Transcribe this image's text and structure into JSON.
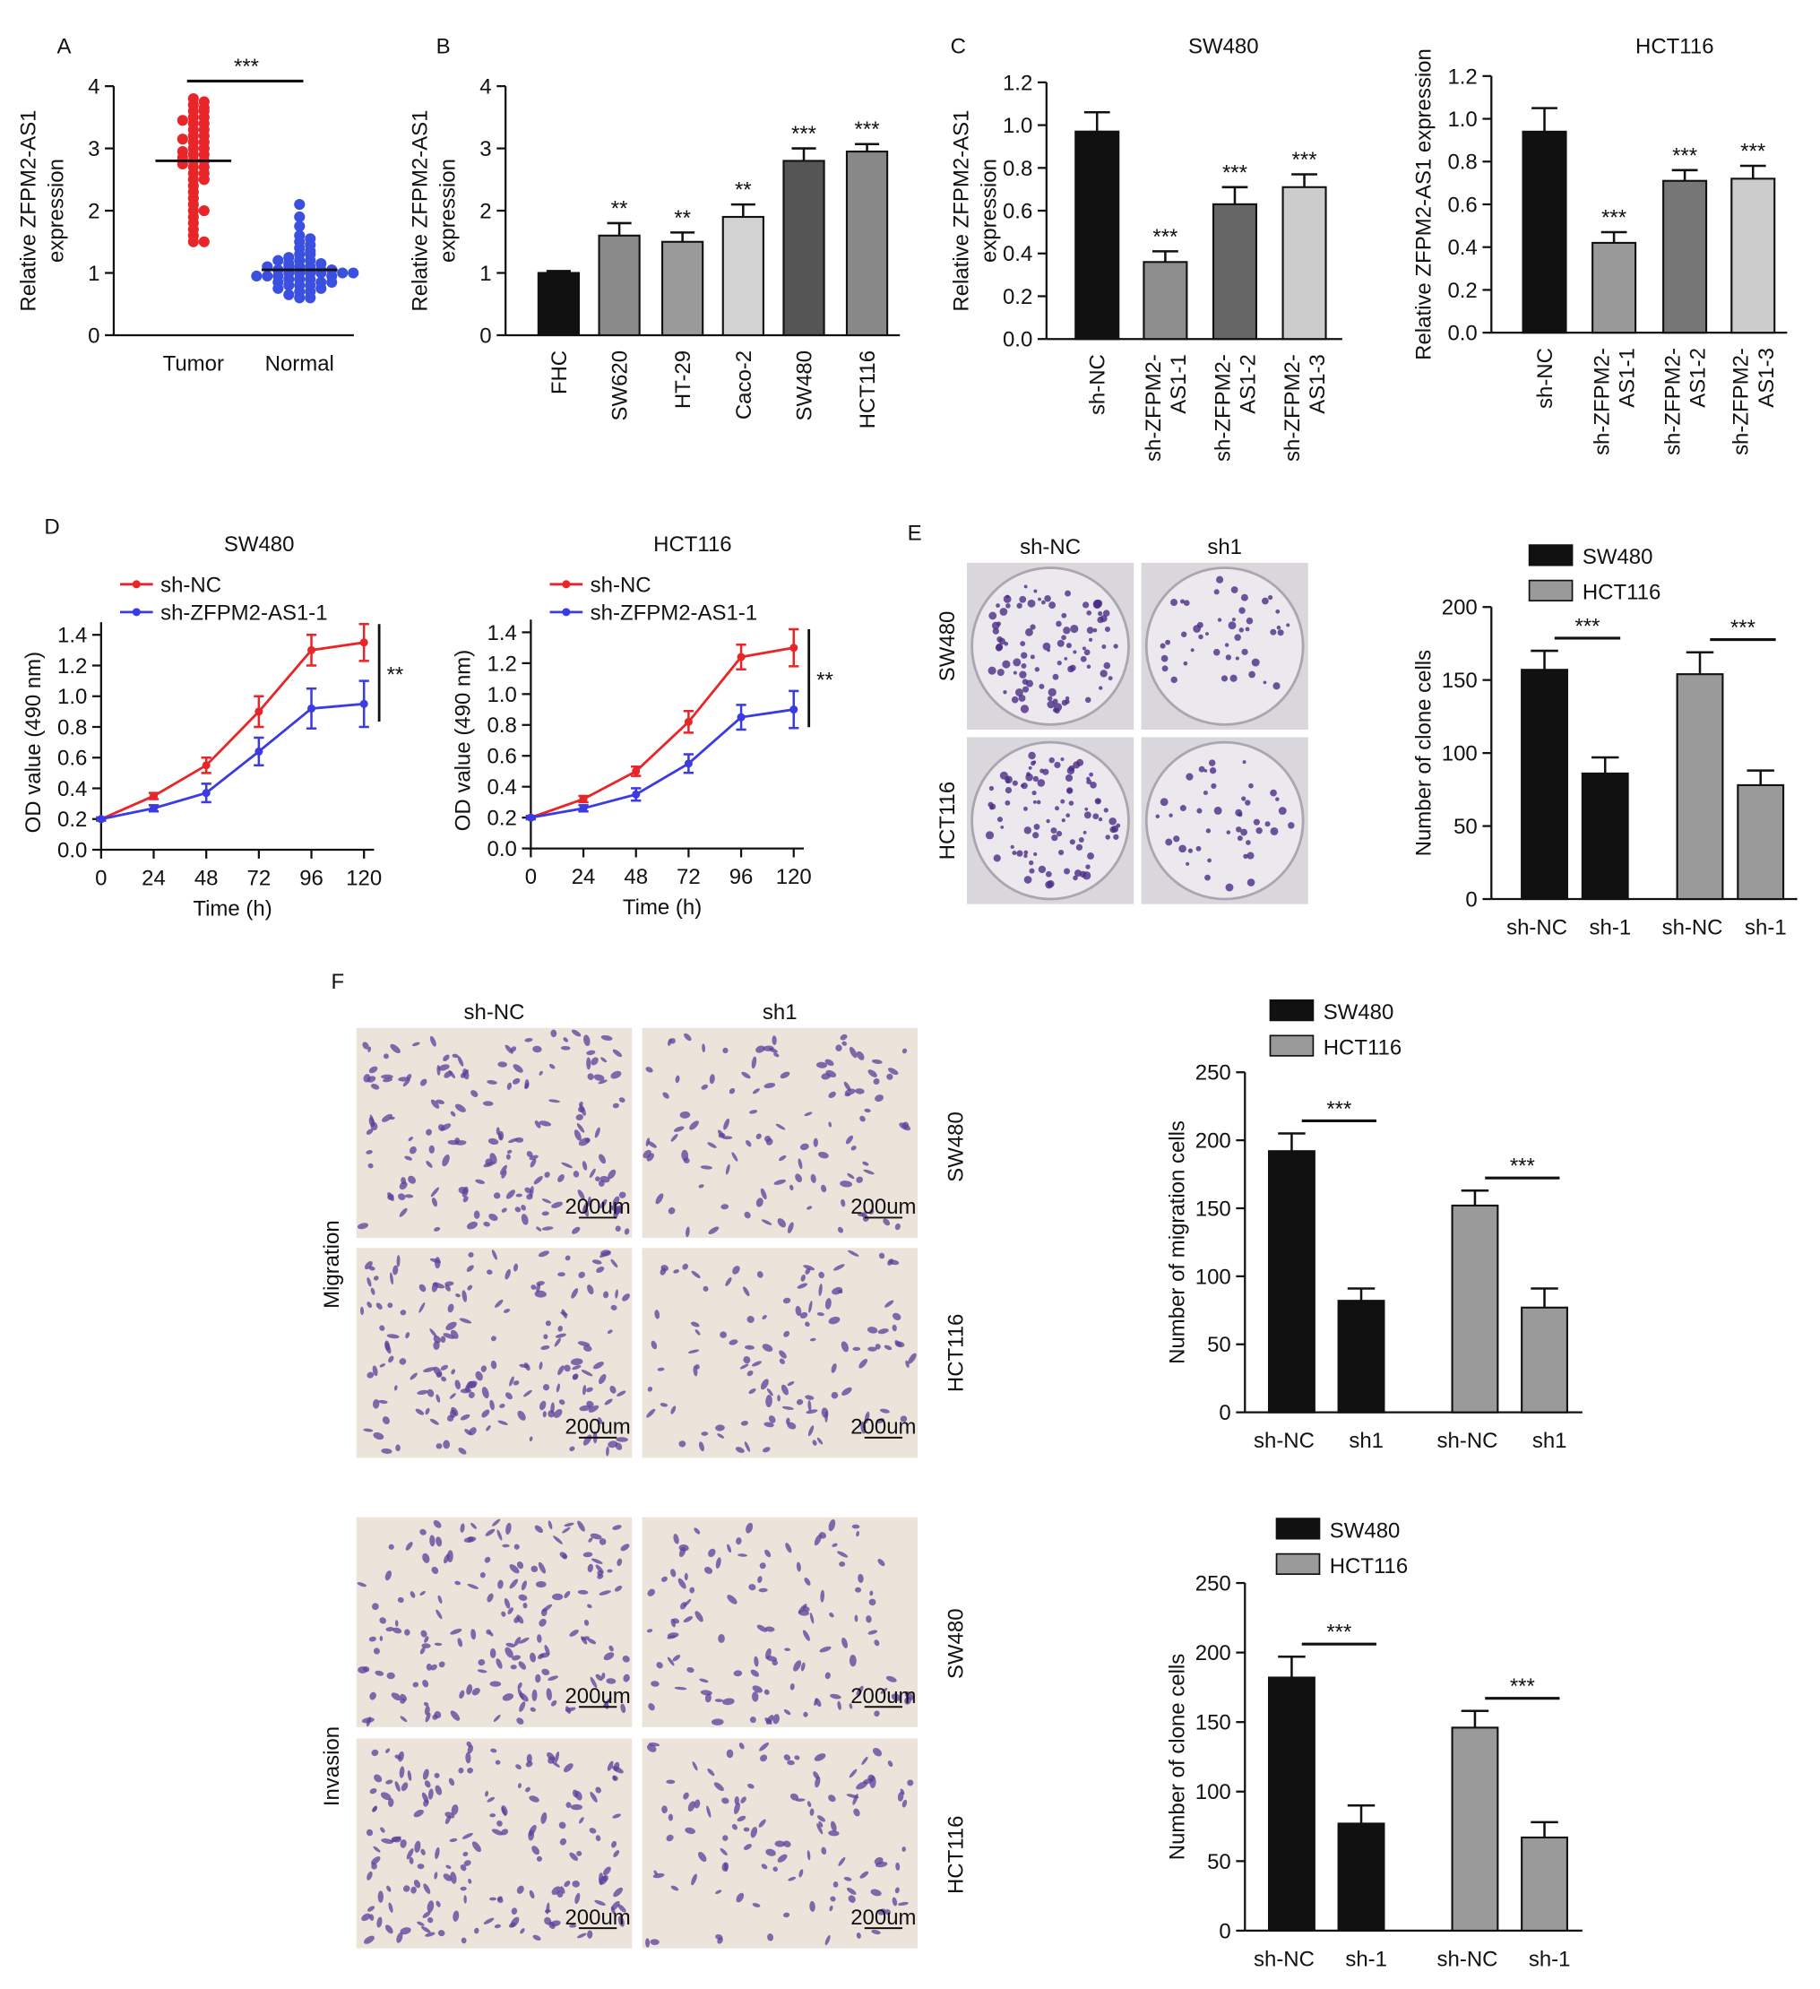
{
  "panels": [
    "A",
    "B",
    "C",
    "D",
    "E",
    "F"
  ],
  "images": {
    "E": {
      "columns": [
        "sh-NC",
        "sh1"
      ],
      "rows": [
        "SW480",
        "HCT116"
      ]
    },
    "F": {
      "columns": [
        "sh-NC",
        "sh1"
      ],
      "rows": [
        "SW480",
        "HCT116"
      ],
      "groups": [
        "Migration",
        "Invasion"
      ],
      "scale_bar": "200um"
    }
  },
  "chart_data": [
    {
      "type": "strip",
      "ylabel": "Relative ZFPM2-AS1 expression",
      "categories": [
        "Tumor",
        "Normal"
      ],
      "colors": [
        "#e8262a",
        "#3b4fe0"
      ],
      "values": [
        [
          3.8,
          3.7,
          3.75,
          3.6,
          3.6,
          3.5,
          3.5,
          3.45,
          3.4,
          3.4,
          3.3,
          3.3,
          3.2,
          3.2,
          3.15,
          3.1,
          3.1,
          3.0,
          3.0,
          2.95,
          2.9,
          2.9,
          2.85,
          2.8,
          2.8,
          2.75,
          2.7,
          2.7,
          2.6,
          2.6,
          2.5,
          2.5,
          2.4,
          2.3,
          2.2,
          2.1,
          2.0,
          2.0,
          1.9,
          1.8,
          1.7,
          1.6,
          1.5,
          1.5,
          3.65
        ],
        [
          2.1,
          1.9,
          1.75,
          1.6,
          1.55,
          1.5,
          1.45,
          1.4,
          1.35,
          1.3,
          1.3,
          1.25,
          1.2,
          1.2,
          1.15,
          1.15,
          1.1,
          1.1,
          1.1,
          1.05,
          1.05,
          1.0,
          1.0,
          1.0,
          1.0,
          0.95,
          0.95,
          0.95,
          0.9,
          0.9,
          0.9,
          0.85,
          0.85,
          0.85,
          0.8,
          0.8,
          0.8,
          0.75,
          0.75,
          0.7,
          0.7,
          0.65,
          0.6,
          0.6,
          1.0,
          1.05,
          1.1,
          0.95,
          1.2,
          1.0
        ]
      ],
      "means": [
        2.8,
        1.05
      ],
      "significance": "***",
      "ylim": [
        0,
        4
      ],
      "yticks": [
        0,
        1,
        2,
        3,
        4
      ]
    },
    {
      "type": "bar",
      "ylabel": "Relative ZFPM2-AS1 expression",
      "categories": [
        "FHC",
        "SW620",
        "HT-29",
        "Caco-2",
        "SW480",
        "HCT116"
      ],
      "values": [
        1.0,
        1.6,
        1.5,
        1.9,
        2.8,
        2.95
      ],
      "errors": [
        0.03,
        0.2,
        0.15,
        0.2,
        0.2,
        0.12
      ],
      "colors": [
        "#111111",
        "#8a8a8a",
        "#9a9a9a",
        "#d2d2d2",
        "#555555",
        "#888888"
      ],
      "annotations": [
        null,
        "**",
        "**",
        "**",
        "***",
        "***"
      ],
      "ylim": [
        0,
        4
      ],
      "yticks": [
        0,
        1,
        2,
        3,
        4
      ]
    },
    {
      "type": "bar",
      "title": "SW480",
      "ylabel": "Relative ZFPM2-AS1 expression",
      "categories": [
        "sh-NC",
        "sh-ZFPM2-AS1-1",
        "sh-ZFPM2-AS1-2",
        "sh-ZFPM2-AS1-3"
      ],
      "values": [
        0.97,
        0.36,
        0.63,
        0.71
      ],
      "errors": [
        0.09,
        0.05,
        0.08,
        0.06
      ],
      "colors": [
        "#111111",
        "#8e8e8e",
        "#666666",
        "#cccccc"
      ],
      "annotations": [
        null,
        "***",
        "***",
        "***"
      ],
      "ylim": [
        0,
        1.2
      ],
      "yticks": [
        {
          "value": 0,
          "label": "0.0"
        },
        0.2,
        0.4,
        0.6,
        0.8,
        {
          "value": 1,
          "label": "1.0"
        },
        1.2
      ]
    },
    {
      "type": "bar",
      "title": "HCT116",
      "ylabel": "Relative ZFPM2-AS1 expression",
      "categories": [
        "sh-NC",
        "sh-ZFPM2-AS1-1",
        "sh-ZFPM2-AS1-2",
        "sh-ZFPM2-AS1-3"
      ],
      "values": [
        0.94,
        0.42,
        0.71,
        0.72
      ],
      "errors": [
        0.11,
        0.05,
        0.05,
        0.06
      ],
      "colors": [
        "#111111",
        "#999999",
        "#777777",
        "#cccccc"
      ],
      "annotations": [
        null,
        "***",
        "***",
        "***"
      ],
      "ylim": [
        0,
        1.2
      ],
      "yticks": [
        {
          "value": 0,
          "label": "0.0"
        },
        0.2,
        0.4,
        0.6,
        0.8,
        {
          "value": 1,
          "label": "1.0"
        },
        1.2
      ]
    },
    {
      "type": "line",
      "title": "SW480",
      "xlabel": "Time (h)",
      "ylabel": "OD value (490 nm)",
      "x": [
        0,
        24,
        48,
        72,
        96,
        120
      ],
      "series": [
        {
          "name": "sh-NC",
          "color": "#e8262a",
          "values": [
            0.2,
            0.35,
            0.55,
            0.9,
            1.3,
            1.35
          ],
          "errors": [
            0.01,
            0.02,
            0.05,
            0.1,
            0.1,
            0.12
          ]
        },
        {
          "name": "sh-ZFPM2-AS1-1",
          "color": "#3b3be0",
          "values": [
            0.2,
            0.27,
            0.37,
            0.64,
            0.92,
            0.95
          ],
          "errors": [
            0.01,
            0.02,
            0.06,
            0.09,
            0.13,
            0.15
          ]
        }
      ],
      "significance": "**",
      "xlim": [
        0,
        120
      ],
      "xticks": [
        0,
        24,
        48,
        72,
        96,
        120
      ],
      "ylim": [
        0,
        1.4
      ],
      "yticks": [
        {
          "value": 0,
          "label": "0.0"
        },
        0.2,
        0.4,
        0.6,
        0.8,
        {
          "value": 1,
          "label": "1.0"
        },
        1.2,
        1.4
      ]
    },
    {
      "type": "line",
      "title": "HCT116",
      "xlabel": "Time (h)",
      "ylabel": "OD value (490 nm)",
      "x": [
        0,
        24,
        48,
        72,
        96,
        120
      ],
      "series": [
        {
          "name": "sh-NC",
          "color": "#e8262a",
          "values": [
            0.2,
            0.32,
            0.5,
            0.82,
            1.24,
            1.3
          ],
          "errors": [
            0.01,
            0.02,
            0.03,
            0.07,
            0.08,
            0.12
          ]
        },
        {
          "name": "sh-ZFPM2-AS1-1",
          "color": "#3b3be0",
          "values": [
            0.2,
            0.26,
            0.35,
            0.55,
            0.85,
            0.9
          ],
          "errors": [
            0.01,
            0.02,
            0.04,
            0.06,
            0.08,
            0.12
          ]
        }
      ],
      "significance": "**",
      "xlim": [
        0,
        120
      ],
      "xticks": [
        0,
        24,
        48,
        72,
        96,
        120
      ],
      "ylim": [
        0,
        1.4
      ],
      "yticks": [
        {
          "value": 0,
          "label": "0.0"
        },
        0.2,
        0.4,
        0.6,
        0.8,
        {
          "value": 1,
          "label": "1.0"
        },
        1.2,
        1.4
      ]
    },
    {
      "type": "bar",
      "ylabel": "Number of clone cells",
      "categories": [
        "sh-NC",
        "sh-1"
      ],
      "series": [
        {
          "name": "SW480",
          "color": "#111111",
          "values": [
            157,
            86
          ],
          "errors": [
            13,
            11
          ]
        },
        {
          "name": "HCT116",
          "color": "#9a9a9a",
          "values": [
            154,
            78
          ],
          "errors": [
            15,
            10
          ]
        }
      ],
      "significance": [
        "***",
        "***"
      ],
      "ylim": [
        0,
        200
      ],
      "yticks": [
        0,
        50,
        100,
        150,
        200
      ]
    },
    {
      "type": "bar",
      "ylabel": "Number of migration cells",
      "categories": [
        "sh-NC",
        "sh1"
      ],
      "series": [
        {
          "name": "SW480",
          "color": "#111111",
          "values": [
            192,
            82
          ],
          "errors": [
            13,
            9
          ]
        },
        {
          "name": "HCT116",
          "color": "#9a9a9a",
          "values": [
            152,
            77
          ],
          "errors": [
            11,
            14
          ]
        }
      ],
      "significance": [
        "***",
        "***"
      ],
      "ylim": [
        0,
        250
      ],
      "yticks": [
        0,
        50,
        100,
        150,
        200,
        250
      ]
    },
    {
      "type": "bar",
      "ylabel": "Number of clone cells",
      "categories": [
        "sh-NC",
        "sh-1"
      ],
      "series": [
        {
          "name": "SW480",
          "color": "#111111",
          "values": [
            182,
            77
          ],
          "errors": [
            15,
            13
          ]
        },
        {
          "name": "HCT116",
          "color": "#9a9a9a",
          "values": [
            146,
            67
          ],
          "errors": [
            12,
            11
          ]
        }
      ],
      "significance": [
        "***",
        "***"
      ],
      "ylim": [
        0,
        250
      ],
      "yticks": [
        0,
        50,
        100,
        150,
        200,
        250
      ]
    }
  ]
}
